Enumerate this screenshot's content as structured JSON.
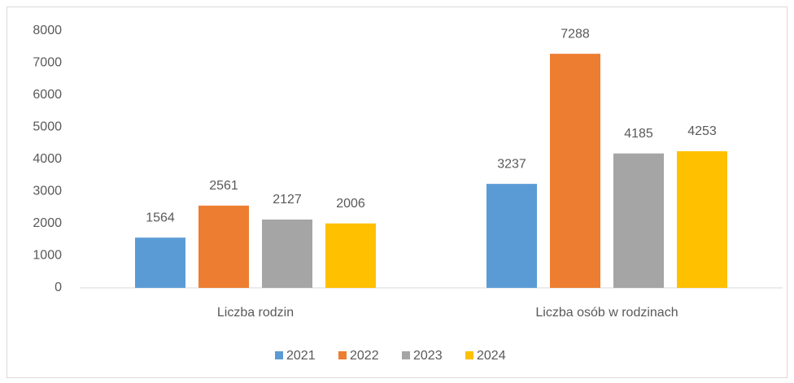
{
  "chart_data": {
    "type": "bar",
    "categories": [
      "Liczba rodzin",
      "Liczba osób w rodzinach"
    ],
    "series": [
      {
        "name": "2021",
        "color": "#5b9bd5",
        "values": [
          1564,
          3237
        ]
      },
      {
        "name": "2022",
        "color": "#ed7d31",
        "values": [
          2561,
          7288
        ]
      },
      {
        "name": "2023",
        "color": "#a5a5a5",
        "values": [
          2127,
          4185
        ]
      },
      {
        "name": "2024",
        "color": "#ffc000",
        "values": [
          2006,
          4253
        ]
      }
    ],
    "ylim": [
      0,
      8000
    ],
    "yticks": [
      0,
      1000,
      2000,
      3000,
      4000,
      5000,
      6000,
      7000,
      8000
    ],
    "grid": false,
    "legend": "bottom"
  }
}
